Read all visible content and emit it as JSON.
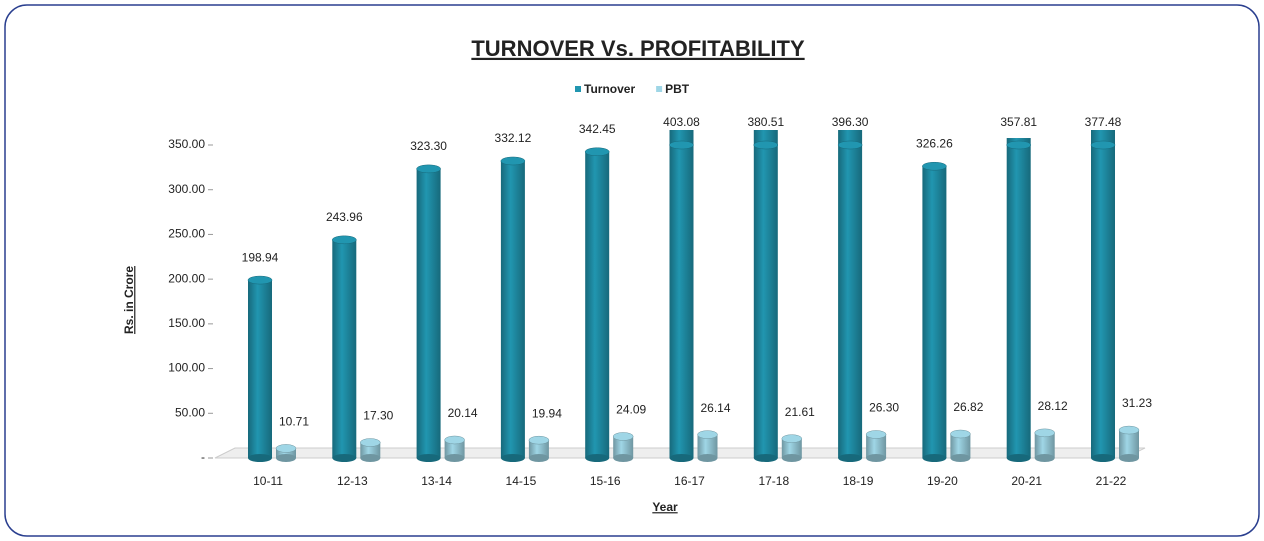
{
  "chart_data": {
    "type": "bar",
    "title": "TURNOVER Vs. PROFITABILITY",
    "y_label": "Rs. in Crore",
    "x_label": "Year",
    "categories": [
      "10-11",
      "12-13",
      "13-14",
      "14-15",
      "15-16",
      "16-17",
      "17-18",
      "18-19",
      "19-20",
      "20-21",
      "21-22"
    ],
    "series": [
      {
        "name": "Turnover",
        "color": "#2196b0",
        "values": [
          198.94,
          243.96,
          323.3,
          332.12,
          342.45,
          403.08,
          380.51,
          396.3,
          326.26,
          357.81,
          377.48
        ],
        "value_labels": [
          "198.94",
          "243.96",
          "323.30",
          "332.12",
          "342.45",
          "403.08",
          "380.51",
          "396.30",
          "326.26",
          "357.81",
          "377.48"
        ]
      },
      {
        "name": "PBT",
        "color": "#9fd6e6",
        "values": [
          10.71,
          17.3,
          20.14,
          19.94,
          24.09,
          26.14,
          21.61,
          26.3,
          26.82,
          28.12,
          31.23
        ],
        "value_labels": [
          "10.71",
          "17.30",
          "20.14",
          "19.94",
          "24.09",
          "26.14",
          "21.61",
          "26.30",
          "26.82",
          "28.12",
          "31.23"
        ]
      }
    ],
    "ylim": [
      0,
      350
    ],
    "yticks": [
      {
        "value": 0,
        "label": "-"
      },
      {
        "value": 50,
        "label": "50.00"
      },
      {
        "value": 100,
        "label": "100.00"
      },
      {
        "value": 150,
        "label": "150.00"
      },
      {
        "value": 200,
        "label": "200.00"
      },
      {
        "value": 250,
        "label": "250.00"
      },
      {
        "value": 300,
        "label": "300.00"
      },
      {
        "value": 350,
        "label": "350.00"
      }
    ],
    "legend": "top"
  }
}
